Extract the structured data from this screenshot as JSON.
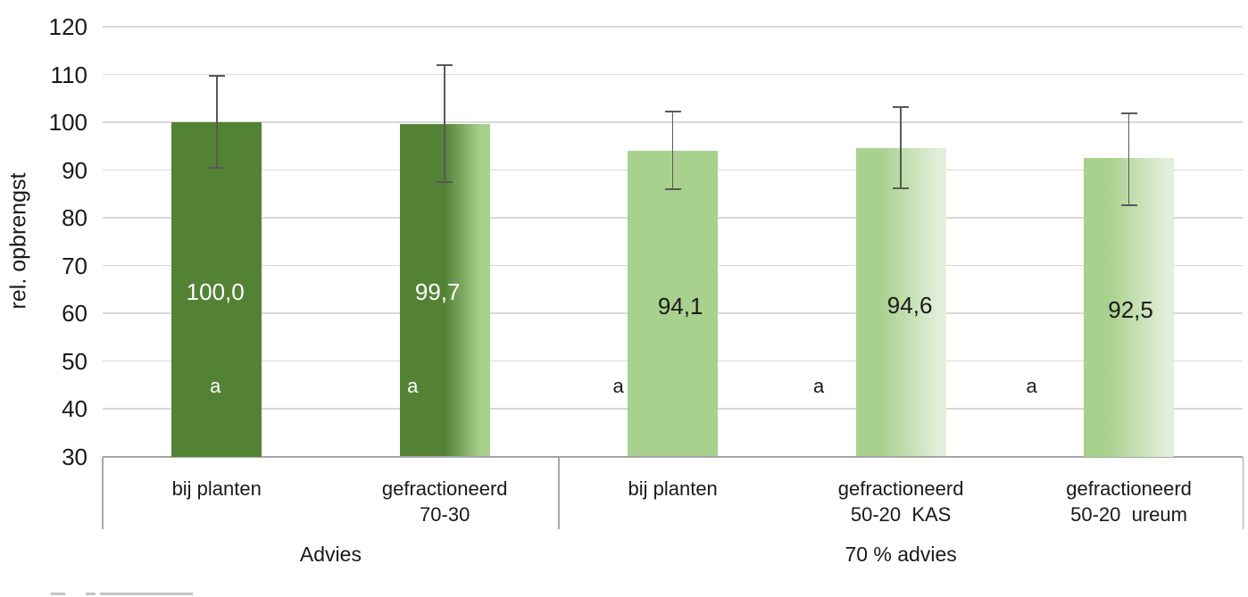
{
  "chart_data": {
    "type": "bar",
    "title": "",
    "xlabel": "",
    "ylabel": "rel. opbrengst",
    "ylim": [
      30,
      120
    ],
    "ytick_step": 10,
    "grid": true,
    "legend": false,
    "decimal_separator": ",",
    "groups": [
      {
        "label": "Advies",
        "bars": [
          {
            "category_lines": [
              "bij planten"
            ],
            "value": 100.0,
            "value_label": "100,0",
            "err_high": 109.8,
            "err_low": 90.5,
            "significance_letter": "a",
            "fill": "dark",
            "label_color": "white"
          },
          {
            "category_lines": [
              "gefractioneerd",
              "70-30"
            ],
            "value": 99.7,
            "value_label": "99,7",
            "err_high": 112.0,
            "err_low": 87.5,
            "significance_letter": "a",
            "fill": "dark-fade",
            "label_color": "white"
          }
        ]
      },
      {
        "label": "70 % advies",
        "bars": [
          {
            "category_lines": [
              "bij planten"
            ],
            "value": 94.1,
            "value_label": "94,1",
            "err_high": 102.3,
            "err_low": 85.9,
            "significance_letter": "a",
            "fill": "light",
            "label_color": "black"
          },
          {
            "category_lines": [
              "gefractioneerd",
              "50-20  KAS"
            ],
            "value": 94.6,
            "value_label": "94,6",
            "err_high": 103.2,
            "err_low": 86.1,
            "significance_letter": "a",
            "fill": "light-fade",
            "label_color": "black"
          },
          {
            "category_lines": [
              "gefractioneerd",
              "50-20  ureum"
            ],
            "value": 92.5,
            "value_label": "92,5",
            "err_high": 101.9,
            "err_low": 82.7,
            "significance_letter": "a",
            "fill": "light-fade",
            "label_color": "black"
          }
        ]
      }
    ],
    "colors": {
      "bar_dark": "#548235",
      "bar_light": "#a9d18e",
      "bar_fade_end": "#e2efda",
      "gridline": "#d9d9d9",
      "axis_line": "#a6a6a6",
      "error_bar": "#595959",
      "background": "#ffffff"
    }
  }
}
